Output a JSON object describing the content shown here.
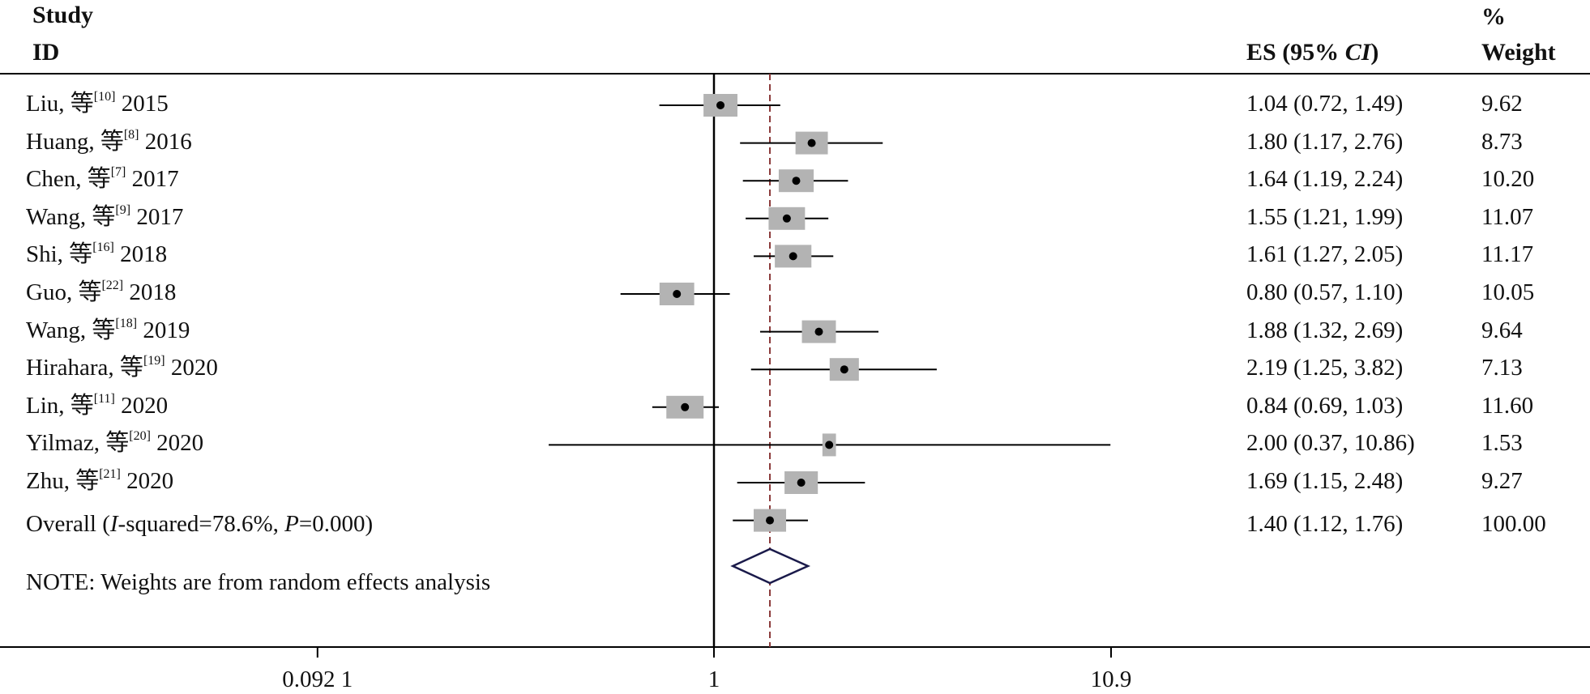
{
  "headers": {
    "study_line1": "Study",
    "study_line2": "ID",
    "es_prefix": "ES (95% ",
    "es_ci": "CI",
    "es_suffix": ")",
    "weight_line1": "%",
    "weight_line2": "Weight"
  },
  "overall": {
    "label_prefix": "Overall (",
    "label_i": "I",
    "label_middle": "-squared=78.6%, ",
    "label_p": "P",
    "label_suffix": "=0.000)",
    "es_text": "1.40 (1.12, 1.76)",
    "weight_text": "100.00"
  },
  "note": "NOTE: Weights are from random effects analysis",
  "colors": {
    "box": "#b3b3b3",
    "line": "#000000",
    "diamond": "#1a1a4a",
    "ref_line": "#8b3a3a"
  },
  "chart_data": {
    "type": "forest",
    "x_scale": "log",
    "null_line": 1,
    "overall_line": 1.4,
    "x_ticks": [
      {
        "value": 0.0921,
        "label": "0.092 1"
      },
      {
        "value": 1,
        "label": "1"
      },
      {
        "value": 10.9,
        "label": "10.9"
      }
    ],
    "studies": [
      {
        "author": "Liu, 等",
        "ref": "[10]",
        "year": "2015",
        "es": 1.04,
        "lo": 0.72,
        "hi": 1.49,
        "es_text": "1.04 (0.72, 1.49)",
        "weight": 9.62,
        "weight_text": "9.62"
      },
      {
        "author": "Huang, 等",
        "ref": "[8]",
        "year": "2016",
        "es": 1.8,
        "lo": 1.17,
        "hi": 2.76,
        "es_text": "1.80 (1.17, 2.76)",
        "weight": 8.73,
        "weight_text": "8.73"
      },
      {
        "author": "Chen, 等",
        "ref": "[7]",
        "year": "2017",
        "es": 1.64,
        "lo": 1.19,
        "hi": 2.24,
        "es_text": "1.64 (1.19, 2.24)",
        "weight": 10.2,
        "weight_text": "10.20"
      },
      {
        "author": "Wang, 等",
        "ref": "[9]",
        "year": "2017",
        "es": 1.55,
        "lo": 1.21,
        "hi": 1.99,
        "es_text": "1.55 (1.21, 1.99)",
        "weight": 11.07,
        "weight_text": "11.07"
      },
      {
        "author": "Shi, 等",
        "ref": "[16]",
        "year": "2018",
        "es": 1.61,
        "lo": 1.27,
        "hi": 2.05,
        "es_text": "1.61 (1.27, 2.05)",
        "weight": 11.17,
        "weight_text": "11.17"
      },
      {
        "author": "Guo, 等",
        "ref": "[22]",
        "year": "2018",
        "es": 0.8,
        "lo": 0.57,
        "hi": 1.1,
        "es_text": "0.80 (0.57, 1.10)",
        "weight": 10.05,
        "weight_text": "10.05"
      },
      {
        "author": "Wang, 等",
        "ref": "[18]",
        "year": "2019",
        "es": 1.88,
        "lo": 1.32,
        "hi": 2.69,
        "es_text": "1.88 (1.32, 2.69)",
        "weight": 9.64,
        "weight_text": "9.64"
      },
      {
        "author": "Hirahara, 等",
        "ref": "[19]",
        "year": "2020",
        "es": 2.19,
        "lo": 1.25,
        "hi": 3.82,
        "es_text": "2.19 (1.25, 3.82)",
        "weight": 7.13,
        "weight_text": "7.13"
      },
      {
        "author": "Lin, 等",
        "ref": "[11]",
        "year": "2020",
        "es": 0.84,
        "lo": 0.69,
        "hi": 1.03,
        "es_text": "0.84 (0.69, 1.03)",
        "weight": 11.6,
        "weight_text": "11.60"
      },
      {
        "author": "Yilmaz, 等",
        "ref": "[20]",
        "year": "2020",
        "es": 2.0,
        "lo": 0.37,
        "hi": 10.86,
        "es_text": "2.00 (0.37, 10.86)",
        "weight": 1.53,
        "weight_text": "1.53"
      },
      {
        "author": "Zhu, 等",
        "ref": "[21]",
        "year": "2020",
        "es": 1.69,
        "lo": 1.15,
        "hi": 2.48,
        "es_text": "1.69 (1.15, 2.48)",
        "weight": 9.27,
        "weight_text": "9.27"
      }
    ],
    "overall_ci": {
      "es": 1.4,
      "lo": 1.12,
      "hi": 1.76
    }
  }
}
